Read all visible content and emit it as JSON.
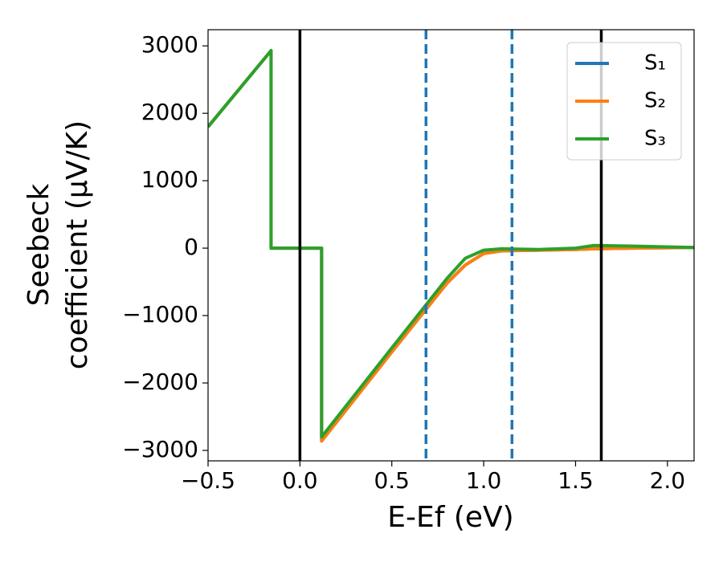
{
  "chart_data": {
    "type": "line",
    "xlabel": "E-Ef (eV)",
    "ylabel": [
      "Seebeck",
      "coefficient  (μV/K)"
    ],
    "x": [
      -0.5,
      -0.157,
      -0.157,
      0.118,
      0.118,
      0.5,
      0.8,
      0.9,
      1.0,
      1.1,
      1.3,
      1.5,
      1.6,
      1.8,
      2.145
    ],
    "series": [
      {
        "name": "S₁",
        "color": "#1f77b4",
        "values": [
          1800,
          2930,
          0,
          0,
          -2860,
          -1540,
          -520,
          -250,
          -80,
          -40,
          -30,
          -20,
          -10,
          0,
          10
        ]
      },
      {
        "name": "S₂",
        "color": "#ff7f0e",
        "values": [
          1800,
          2930,
          0,
          0,
          -2860,
          -1540,
          -520,
          -250,
          -80,
          -40,
          -30,
          -20,
          -10,
          0,
          10
        ]
      },
      {
        "name": "S₃",
        "color": "#2ca02c",
        "values": [
          1800,
          2930,
          0,
          0,
          -2800,
          -1480,
          -450,
          -150,
          -30,
          -10,
          -20,
          0,
          40,
          30,
          10
        ]
      }
    ],
    "vlines": [
      {
        "x": 0.0,
        "color": "#000000",
        "style": "solid"
      },
      {
        "x": 1.64,
        "color": "#000000",
        "style": "solid"
      },
      {
        "x": 0.686,
        "color": "#1f77b4",
        "style": "dashed"
      },
      {
        "x": 1.154,
        "color": "#1f77b4",
        "style": "dashed"
      }
    ],
    "xlim": [
      -0.5,
      2.145
    ],
    "ylim": [
      -3155,
      3240
    ],
    "xticks": [
      {
        "value": -0.5,
        "label": "−0.5"
      },
      {
        "value": 0,
        "label": "0.0"
      },
      {
        "value": 0.5,
        "label": "0.5"
      },
      {
        "value": 1,
        "label": "1.0"
      },
      {
        "value": 1.5,
        "label": "1.5"
      },
      {
        "value": 2,
        "label": "2.0"
      }
    ],
    "yticks": [
      {
        "value": -3000,
        "label": "−3000"
      },
      {
        "value": -2000,
        "label": "−2000"
      },
      {
        "value": -1000,
        "label": "−1000"
      },
      0,
      1000,
      2000,
      3000
    ],
    "legend": "upper right"
  }
}
